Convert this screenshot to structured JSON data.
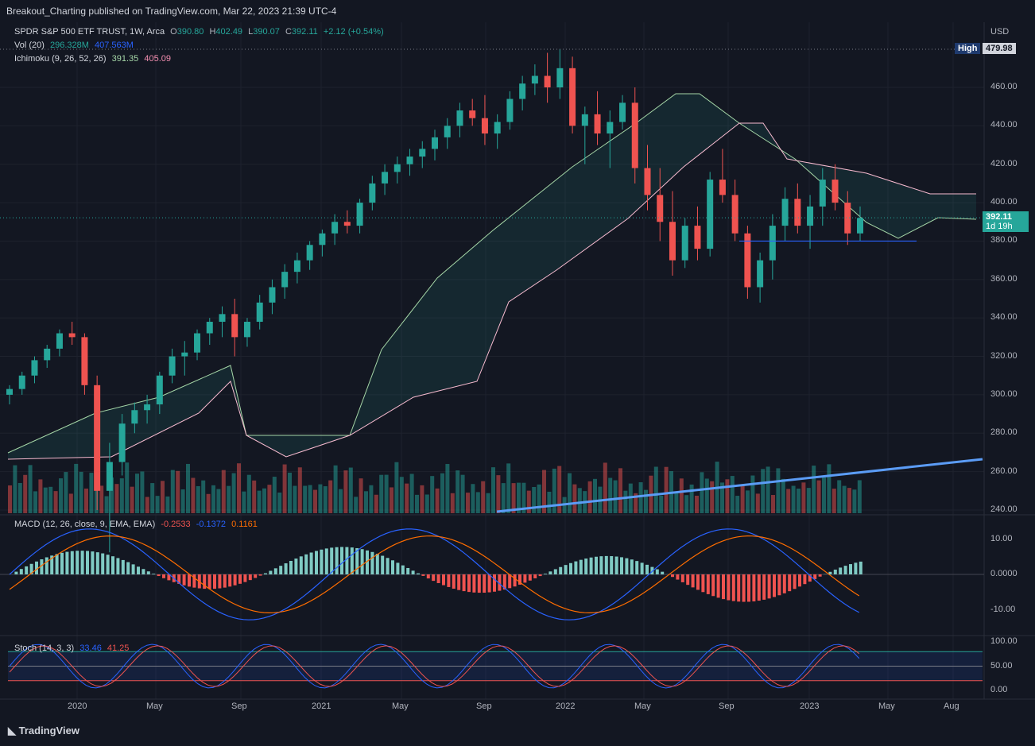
{
  "header": {
    "published": "Breakout_Charting published on TradingView.com, Mar 22, 2023 21:39 UTC-4"
  },
  "symbol": {
    "name": "SPDR S&P 500 ETF TRUST, 1W, Arca",
    "o_label": "O",
    "o": "390.80",
    "h_label": "H",
    "h": "402.49",
    "l_label": "L",
    "l": "390.07",
    "c_label": "C",
    "c": "392.11",
    "chg": "+2.12 (+0.54%)"
  },
  "vol": {
    "label": "Vol (20)",
    "v1": "296.328M",
    "v2": "407.563M"
  },
  "ichimoku": {
    "label": "Ichimoku (9, 26, 52, 26)",
    "v1": "391.35",
    "v2": "405.09"
  },
  "macd": {
    "label": "MACD (12, 26, close, 9, EMA, EMA)",
    "hist": "-0.2533",
    "macd": "-0.1372",
    "signal": "0.1161"
  },
  "stoch": {
    "label": "Stoch (14, 3, 3)",
    "k": "33.46",
    "d": "41.25"
  },
  "price_axis": {
    "currency": "USD",
    "ticks": [
      "460.00",
      "440.00",
      "420.00",
      "400.00",
      "380.00",
      "360.00",
      "340.00",
      "320.00",
      "300.00",
      "280.00",
      "260.00",
      "240.00"
    ]
  },
  "macd_axis": {
    "ticks": [
      "10.00",
      "0.0000",
      "-10.00"
    ]
  },
  "stoch_axis": {
    "ticks": [
      "100.00",
      "50.00",
      "0.00"
    ]
  },
  "tags": {
    "high_label": "High",
    "high_value": "479.98",
    "last_price": "392.11",
    "countdown": "1d 19h"
  },
  "time_axis": [
    "2020",
    "May",
    "Sep",
    "2021",
    "May",
    "Sep",
    "2022",
    "May",
    "Sep",
    "2023",
    "May",
    "Aug"
  ],
  "footer": {
    "brand": "TradingView"
  },
  "colors": {
    "up": "#26a69a",
    "down": "#ef5350",
    "bg": "#131722",
    "trend": "#5b9cf6",
    "grid": "#1e222d"
  },
  "chart_data": {
    "type": "candlestick",
    "title": "SPDR S&P 500 ETF TRUST, 1W, Arca",
    "ylabel": "USD",
    "ylim": [
      240,
      480
    ],
    "ohlc_weekly_approx": [
      [
        300,
        305,
        295,
        303
      ],
      [
        303,
        312,
        300,
        310
      ],
      [
        310,
        320,
        306,
        318
      ],
      [
        318,
        326,
        314,
        324
      ],
      [
        324,
        334,
        320,
        332
      ],
      [
        332,
        338,
        326,
        330
      ],
      [
        330,
        332,
        300,
        305
      ],
      [
        305,
        310,
        240,
        250
      ],
      [
        250,
        275,
        218,
        265
      ],
      [
        265,
        290,
        258,
        285
      ],
      [
        285,
        296,
        280,
        292
      ],
      [
        292,
        300,
        285,
        295
      ],
      [
        295,
        312,
        290,
        310
      ],
      [
        310,
        324,
        306,
        320
      ],
      [
        320,
        328,
        310,
        322
      ],
      [
        322,
        334,
        318,
        332
      ],
      [
        332,
        340,
        326,
        338
      ],
      [
        338,
        346,
        330,
        342
      ],
      [
        342,
        350,
        320,
        330
      ],
      [
        330,
        340,
        325,
        338
      ],
      [
        338,
        352,
        334,
        348
      ],
      [
        348,
        360,
        342,
        356
      ],
      [
        356,
        368,
        350,
        364
      ],
      [
        364,
        374,
        358,
        370
      ],
      [
        370,
        380,
        365,
        378
      ],
      [
        378,
        386,
        372,
        384
      ],
      [
        384,
        394,
        378,
        390
      ],
      [
        390,
        396,
        384,
        388
      ],
      [
        388,
        402,
        384,
        400
      ],
      [
        400,
        414,
        396,
        410
      ],
      [
        410,
        420,
        404,
        416
      ],
      [
        416,
        424,
        410,
        420
      ],
      [
        420,
        428,
        414,
        424
      ],
      [
        424,
        432,
        418,
        428
      ],
      [
        428,
        438,
        422,
        434
      ],
      [
        434,
        444,
        428,
        440
      ],
      [
        440,
        452,
        434,
        448
      ],
      [
        448,
        454,
        440,
        444
      ],
      [
        444,
        456,
        430,
        436
      ],
      [
        436,
        446,
        428,
        442
      ],
      [
        442,
        458,
        438,
        454
      ],
      [
        454,
        466,
        448,
        462
      ],
      [
        462,
        472,
        456,
        466
      ],
      [
        466,
        478,
        452,
        460
      ],
      [
        460,
        480,
        454,
        470
      ],
      [
        470,
        476,
        436,
        440
      ],
      [
        440,
        450,
        420,
        446
      ],
      [
        446,
        458,
        430,
        436
      ],
      [
        436,
        448,
        418,
        442
      ],
      [
        442,
        456,
        438,
        452
      ],
      [
        452,
        460,
        410,
        418
      ],
      [
        418,
        430,
        396,
        404
      ],
      [
        404,
        418,
        380,
        390
      ],
      [
        390,
        406,
        362,
        370
      ],
      [
        370,
        392,
        366,
        388
      ],
      [
        388,
        398,
        370,
        376
      ],
      [
        376,
        416,
        372,
        412
      ],
      [
        412,
        428,
        400,
        404
      ],
      [
        404,
        412,
        380,
        384
      ],
      [
        384,
        388,
        350,
        356
      ],
      [
        356,
        374,
        348,
        370
      ],
      [
        370,
        394,
        360,
        388
      ],
      [
        388,
        408,
        380,
        402
      ],
      [
        402,
        410,
        384,
        388
      ],
      [
        388,
        404,
        376,
        398
      ],
      [
        398,
        418,
        388,
        412
      ],
      [
        412,
        420,
        396,
        400
      ],
      [
        400,
        406,
        378,
        384
      ],
      [
        384,
        398,
        380,
        392
      ]
    ],
    "volume_series_recent_M": [
      296.328
    ],
    "ichimoku": {
      "conversion": 391.35,
      "base": 405.09
    },
    "trendline_support": 380.0,
    "annotations": [
      {
        "label": "High",
        "value": 479.98
      },
      {
        "label": "last",
        "value": 392.11
      }
    ]
  }
}
